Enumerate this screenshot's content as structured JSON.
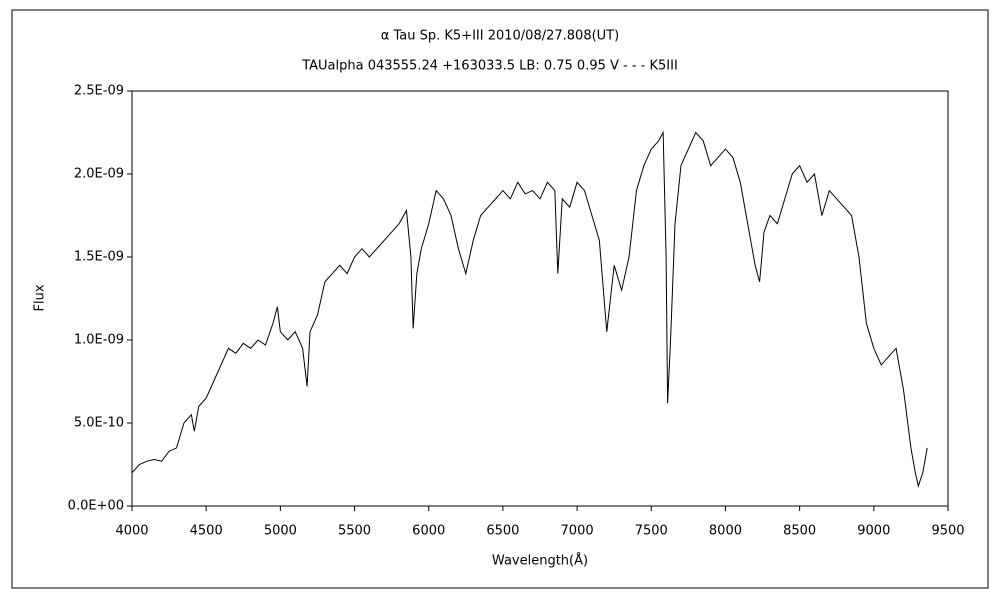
{
  "chart_data": {
    "type": "line",
    "title": "α Tau   Sp. K5+III   2010/08/27.808(UT)",
    "subtitle": "TAUalpha 043555.24 +163033.5 LB: 0.75 0.95 V - - - K5III",
    "x_label": "Wavelength(Å)",
    "y_label": "Flux",
    "xlim": [
      4000,
      9500
    ],
    "xticks": [
      4000,
      4500,
      5000,
      5500,
      6000,
      6500,
      7000,
      7500,
      8000,
      8500,
      9000,
      9500
    ],
    "ylim": [
      0,
      2.5e-09
    ],
    "yticks": [
      {
        "value": 0,
        "label": "0.0E+00"
      },
      {
        "value": 5e-10,
        "label": "5.0E-10"
      },
      {
        "value": 1e-09,
        "label": "1.0E-09"
      },
      {
        "value": 1.5e-09,
        "label": "1.5E-09"
      },
      {
        "value": 2e-09,
        "label": "2.0E-09"
      },
      {
        "value": 2.5e-09,
        "label": "2.5E-09"
      }
    ],
    "grid": false,
    "series": [
      {
        "color": "#000000",
        "x": [
          4000,
          4050,
          4100,
          4150,
          4200,
          4250,
          4300,
          4350,
          4400,
          4420,
          4450,
          4500,
          4550,
          4600,
          4650,
          4700,
          4750,
          4800,
          4850,
          4900,
          4950,
          4980,
          5000,
          5050,
          5100,
          5150,
          5180,
          5200,
          5250,
          5300,
          5350,
          5400,
          5450,
          5500,
          5550,
          5600,
          5650,
          5700,
          5750,
          5800,
          5850,
          5880,
          5895,
          5920,
          5950,
          6000,
          6050,
          6100,
          6150,
          6200,
          6250,
          6300,
          6350,
          6400,
          6450,
          6500,
          6550,
          6600,
          6650,
          6700,
          6750,
          6800,
          6850,
          6870,
          6900,
          6950,
          7000,
          7050,
          7100,
          7150,
          7200,
          7250,
          7300,
          7350,
          7400,
          7450,
          7500,
          7550,
          7580,
          7600,
          7610,
          7630,
          7660,
          7700,
          7750,
          7800,
          7850,
          7900,
          7950,
          8000,
          8050,
          8100,
          8150,
          8200,
          8230,
          8260,
          8300,
          8350,
          8400,
          8450,
          8500,
          8550,
          8600,
          8650,
          8700,
          8750,
          8800,
          8850,
          8900,
          8950,
          9000,
          9050,
          9100,
          9150,
          9200,
          9250,
          9280,
          9300,
          9330,
          9360
        ],
        "values": [
          2e-10,
          2.5e-10,
          2.7e-10,
          2.8e-10,
          2.7e-10,
          3.3e-10,
          3.5e-10,
          5e-10,
          5.5e-10,
          4.5e-10,
          6e-10,
          6.5e-10,
          7.5e-10,
          8.5e-10,
          9.5e-10,
          9.2e-10,
          9.8e-10,
          9.5e-10,
          1e-09,
          9.7e-10,
          1.1e-09,
          1.2e-09,
          1.05e-09,
          1e-09,
          1.05e-09,
          9.5e-10,
          7.2e-10,
          1.05e-09,
          1.15e-09,
          1.35e-09,
          1.4e-09,
          1.45e-09,
          1.4e-09,
          1.5e-09,
          1.55e-09,
          1.5e-09,
          1.55e-09,
          1.6e-09,
          1.65e-09,
          1.7e-09,
          1.78e-09,
          1.5e-09,
          1.07e-09,
          1.4e-09,
          1.55e-09,
          1.7e-09,
          1.9e-09,
          1.85e-09,
          1.75e-09,
          1.55e-09,
          1.4e-09,
          1.6e-09,
          1.75e-09,
          1.8e-09,
          1.85e-09,
          1.9e-09,
          1.85e-09,
          1.95e-09,
          1.88e-09,
          1.9e-09,
          1.85e-09,
          1.95e-09,
          1.9e-09,
          1.4e-09,
          1.85e-09,
          1.8e-09,
          1.95e-09,
          1.9e-09,
          1.75e-09,
          1.6e-09,
          1.05e-09,
          1.45e-09,
          1.3e-09,
          1.5e-09,
          1.9e-09,
          2.05e-09,
          2.15e-09,
          2.2e-09,
          2.25e-09,
          1.5e-09,
          6.2e-10,
          1e-09,
          1.7e-09,
          2.05e-09,
          2.15e-09,
          2.25e-09,
          2.2e-09,
          2.05e-09,
          2.1e-09,
          2.15e-09,
          2.1e-09,
          1.95e-09,
          1.7e-09,
          1.45e-09,
          1.35e-09,
          1.65e-09,
          1.75e-09,
          1.7e-09,
          1.85e-09,
          2e-09,
          2.05e-09,
          1.95e-09,
          2e-09,
          1.75e-09,
          1.9e-09,
          1.85e-09,
          1.8e-09,
          1.75e-09,
          1.5e-09,
          1.1e-09,
          9.5e-10,
          8.5e-10,
          9e-10,
          9.5e-10,
          7e-10,
          3.5e-10,
          2e-10,
          1.2e-10,
          2e-10,
          3.5e-10
        ]
      }
    ]
  }
}
